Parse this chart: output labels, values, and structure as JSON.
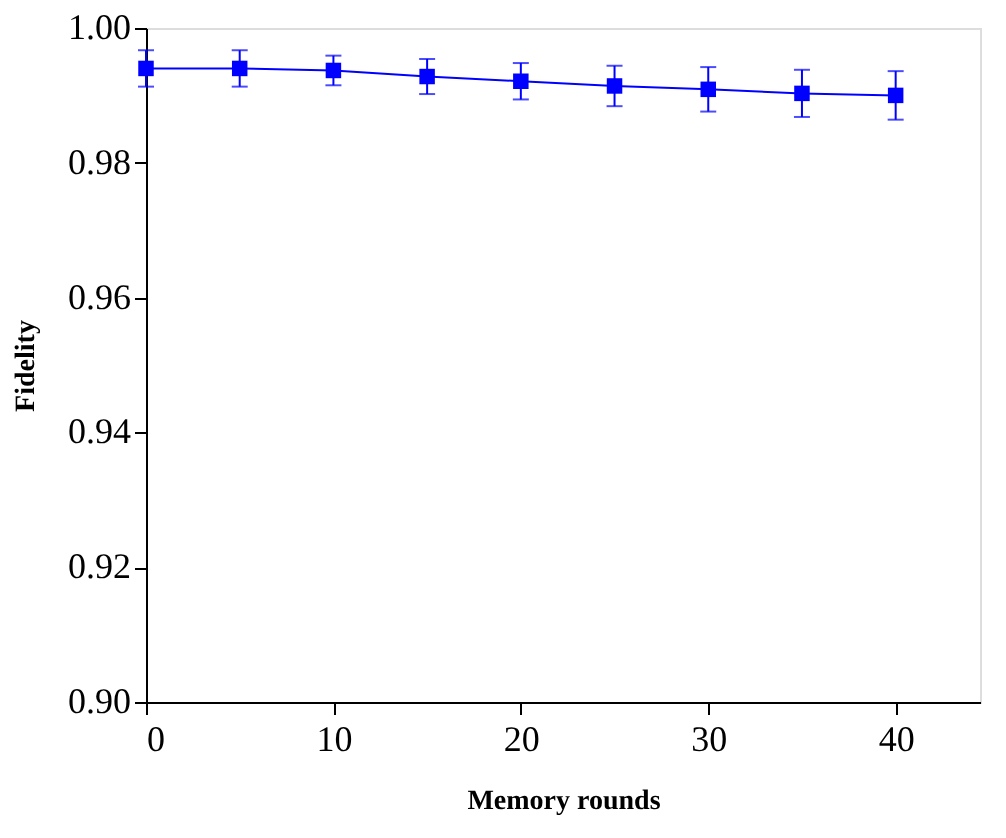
{
  "chart_data": {
    "type": "line",
    "xlabel": "Memory rounds",
    "ylabel": "Fidelity",
    "x": [
      0,
      5,
      10,
      15,
      20,
      25,
      30,
      35,
      40
    ],
    "series": [
      {
        "color": "#0000ff",
        "values": [
          0.994,
          0.994,
          0.9937,
          0.9928,
          0.9921,
          0.9914,
          0.9909,
          0.9903,
          0.99
        ],
        "errors": [
          0.0027,
          0.0027,
          0.0022,
          0.0026,
          0.0027,
          0.003,
          0.0033,
          0.0035,
          0.0036
        ]
      }
    ],
    "xlim": [
      0,
      44.5
    ],
    "xticks": [
      0,
      10,
      20,
      30,
      40
    ],
    "ylim": [
      0.9,
      1.0
    ],
    "yticks": [
      {
        "value": 0.9,
        "label": "0.90"
      },
      {
        "value": 0.92,
        "label": "0.92"
      },
      {
        "value": 0.94,
        "label": "0.94"
      },
      {
        "value": 0.96,
        "label": "0.96"
      },
      {
        "value": 0.98,
        "label": "0.98"
      },
      {
        "value": 1.0,
        "label": "1.00"
      }
    ],
    "marker": "square",
    "line_style": "solid",
    "grid": false
  }
}
